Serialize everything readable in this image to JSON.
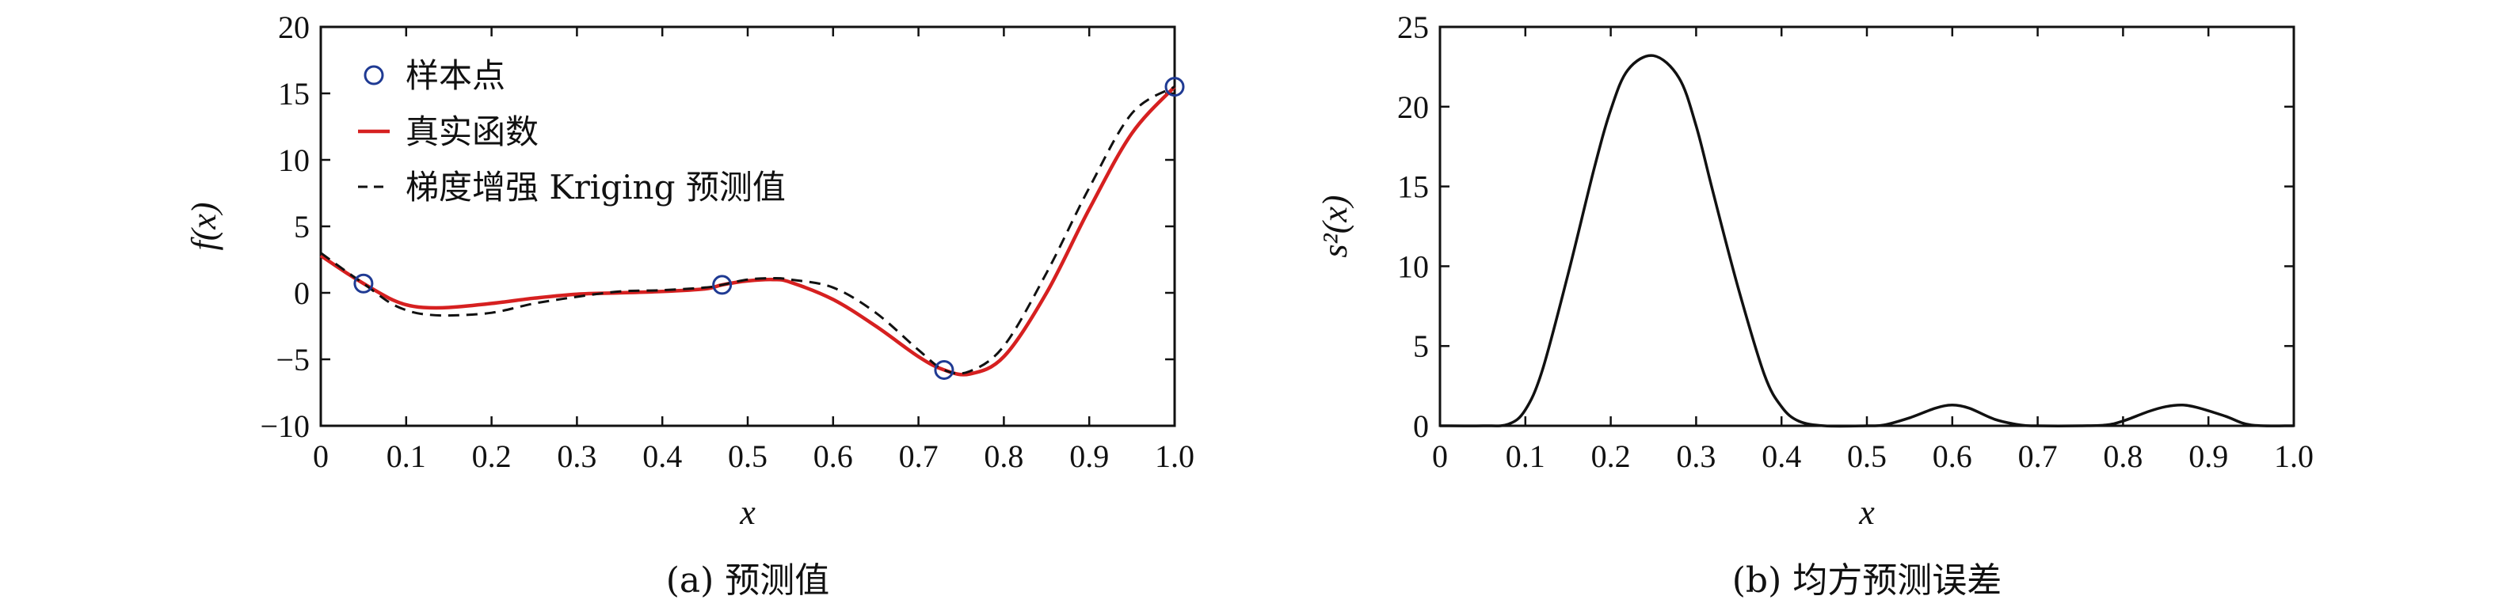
{
  "chart_data": [
    {
      "type": "line",
      "panel": "a",
      "caption": "(a) 预测值",
      "xlabel": "x",
      "ylabel": "f(x)",
      "xlim": [
        0,
        1.0
      ],
      "ylim": [
        -10,
        20
      ],
      "xticks": [
        "0",
        "0.1",
        "0.2",
        "0.3",
        "0.4",
        "0.5",
        "0.6",
        "0.7",
        "0.8",
        "0.9",
        "1.0"
      ],
      "yticks": [
        "−10",
        "−5",
        "0",
        "5",
        "10",
        "15",
        "20"
      ],
      "grid": false,
      "legend_position": "top-left",
      "series": [
        {
          "name": "样本点",
          "kind": "markers",
          "color": "#1f3a93",
          "x": [
            0.05,
            0.47,
            0.73,
            1.0
          ],
          "y": [
            0.7,
            0.6,
            -5.8,
            15.5
          ]
        },
        {
          "name": "真实函数",
          "kind": "solid",
          "color": "#d62020",
          "x": [
            0.0,
            0.03,
            0.05,
            0.08,
            0.1,
            0.12,
            0.15,
            0.2,
            0.25,
            0.3,
            0.35,
            0.4,
            0.45,
            0.47,
            0.5,
            0.53,
            0.55,
            0.6,
            0.65,
            0.7,
            0.73,
            0.76,
            0.8,
            0.85,
            0.9,
            0.95,
            1.0
          ],
          "y": [
            2.8,
            1.5,
            0.7,
            -0.4,
            -0.9,
            -1.1,
            -1.1,
            -0.8,
            -0.4,
            -0.1,
            0.0,
            0.1,
            0.3,
            0.6,
            0.9,
            1.0,
            0.8,
            -0.5,
            -2.5,
            -4.8,
            -5.8,
            -6.1,
            -4.8,
            0.0,
            6.3,
            12.0,
            15.5
          ]
        },
        {
          "name": "梯度增强 Kriging 预测值",
          "kind": "dashed",
          "color": "#111111",
          "x": [
            0.0,
            0.03,
            0.05,
            0.08,
            0.1,
            0.12,
            0.15,
            0.2,
            0.25,
            0.3,
            0.35,
            0.4,
            0.45,
            0.47,
            0.5,
            0.53,
            0.55,
            0.6,
            0.65,
            0.7,
            0.73,
            0.76,
            0.8,
            0.85,
            0.9,
            0.95,
            1.0
          ],
          "y": [
            3.0,
            1.6,
            0.7,
            -0.7,
            -1.3,
            -1.6,
            -1.7,
            -1.5,
            -0.8,
            -0.3,
            0.1,
            0.2,
            0.4,
            0.6,
            1.0,
            1.1,
            1.0,
            0.4,
            -1.5,
            -4.3,
            -5.8,
            -5.9,
            -4.0,
            1.5,
            7.9,
            13.5,
            15.5
          ]
        }
      ]
    },
    {
      "type": "line",
      "panel": "b",
      "caption": "(b) 均方预测误差",
      "xlabel": "x",
      "ylabel": "s²(x)",
      "xlim": [
        0,
        1.0
      ],
      "ylim": [
        0,
        25
      ],
      "xticks": [
        "0",
        "0.1",
        "0.2",
        "0.3",
        "0.4",
        "0.5",
        "0.6",
        "0.7",
        "0.8",
        "0.9",
        "1.0"
      ],
      "yticks": [
        "0",
        "5",
        "10",
        "15",
        "20",
        "25"
      ],
      "grid": false,
      "series": [
        {
          "kind": "solid",
          "color": "#111111",
          "x": [
            0.0,
            0.05,
            0.08,
            0.1,
            0.12,
            0.15,
            0.18,
            0.2,
            0.22,
            0.25,
            0.28,
            0.3,
            0.32,
            0.35,
            0.38,
            0.4,
            0.42,
            0.45,
            0.5,
            0.52,
            0.55,
            0.58,
            0.6,
            0.62,
            0.65,
            0.68,
            0.7,
            0.75,
            0.78,
            0.8,
            0.83,
            0.85,
            0.87,
            0.89,
            0.92,
            0.95,
            1.0
          ],
          "y": [
            0.0,
            0.0,
            0.1,
            1.0,
            3.5,
            9.5,
            16.0,
            19.8,
            22.3,
            23.2,
            21.8,
            18.8,
            14.6,
            8.5,
            3.2,
            1.2,
            0.3,
            0.0,
            0.0,
            0.05,
            0.5,
            1.1,
            1.3,
            1.1,
            0.4,
            0.05,
            0.0,
            0.0,
            0.05,
            0.3,
            0.9,
            1.2,
            1.3,
            1.1,
            0.6,
            0.05,
            0.0
          ]
        }
      ]
    }
  ]
}
